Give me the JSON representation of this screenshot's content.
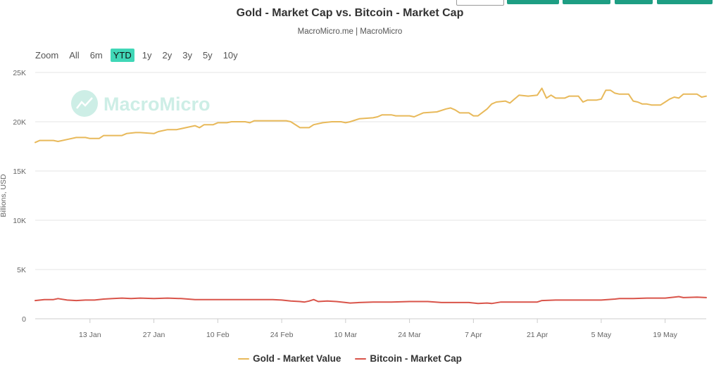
{
  "header": {
    "title": "Gold - Market Cap vs. Bitcoin - Market Cap",
    "subtitle": "MacroMicro.me | MacroMicro"
  },
  "range_selector": {
    "label": "Zoom",
    "buttons": [
      "All",
      "6m",
      "YTD",
      "1y",
      "2y",
      "3y",
      "5y",
      "10y"
    ],
    "active": "YTD",
    "active_color": "#40d7b7"
  },
  "watermark": {
    "text": "MacroMicro",
    "icon": "macromicro-chart-logo-icon"
  },
  "colors": {
    "accent": "#1e9e83",
    "gold": "#e8b95a",
    "bitcoin": "#d9544a",
    "grid": "#e6e6e6",
    "watermark": "#cdeee6"
  },
  "chart_data": {
    "type": "line",
    "title": "Gold - Market Cap vs. Bitcoin - Market Cap",
    "subtitle": "MacroMicro.me | MacroMicro",
    "xlabel": "",
    "ylabel": "Billions, USD",
    "ylim": [
      0,
      25000
    ],
    "yticks": [
      0,
      5000,
      10000,
      15000,
      20000,
      25000
    ],
    "ytick_labels": [
      "0",
      "5K",
      "10K",
      "15K",
      "20K",
      "25K"
    ],
    "xlim": [
      "2025-01-01",
      "2025-05-28"
    ],
    "xtick_dates": [
      "2025-01-13",
      "2025-01-27",
      "2025-02-10",
      "2025-02-24",
      "2025-03-10",
      "2025-03-24",
      "2025-04-07",
      "2025-04-21",
      "2025-05-05",
      "2025-05-19"
    ],
    "xtick_labels": [
      "13 Jan",
      "27 Jan",
      "10 Feb",
      "24 Feb",
      "10 Mar",
      "24 Mar",
      "7 Apr",
      "21 Apr",
      "5 May",
      "19 May"
    ],
    "grid": true,
    "legend_position": "bottom-center",
    "series": [
      {
        "name": "Gold - Market Value",
        "color": "#e8b95a",
        "points": [
          [
            "2025-01-01",
            17900
          ],
          [
            "2025-01-02",
            18100
          ],
          [
            "2025-01-03",
            18100
          ],
          [
            "2025-01-05",
            18100
          ],
          [
            "2025-01-06",
            18000
          ],
          [
            "2025-01-08",
            18200
          ],
          [
            "2025-01-10",
            18400
          ],
          [
            "2025-01-12",
            18400
          ],
          [
            "2025-01-13",
            18300
          ],
          [
            "2025-01-15",
            18300
          ],
          [
            "2025-01-16",
            18600
          ],
          [
            "2025-01-20",
            18600
          ],
          [
            "2025-01-21",
            18800
          ],
          [
            "2025-01-23",
            18900
          ],
          [
            "2025-01-24",
            18900
          ],
          [
            "2025-01-27",
            18800
          ],
          [
            "2025-01-28",
            19000
          ],
          [
            "2025-01-30",
            19200
          ],
          [
            "2025-02-01",
            19200
          ],
          [
            "2025-02-04",
            19500
          ],
          [
            "2025-02-05",
            19600
          ],
          [
            "2025-02-06",
            19400
          ],
          [
            "2025-02-07",
            19700
          ],
          [
            "2025-02-09",
            19700
          ],
          [
            "2025-02-10",
            19900
          ],
          [
            "2025-02-12",
            19900
          ],
          [
            "2025-02-13",
            20000
          ],
          [
            "2025-02-16",
            20000
          ],
          [
            "2025-02-17",
            19900
          ],
          [
            "2025-02-18",
            20100
          ],
          [
            "2025-02-21",
            20100
          ],
          [
            "2025-02-25",
            20100
          ],
          [
            "2025-02-26",
            20000
          ],
          [
            "2025-02-28",
            19400
          ],
          [
            "2025-03-02",
            19400
          ],
          [
            "2025-03-03",
            19700
          ],
          [
            "2025-03-05",
            19900
          ],
          [
            "2025-03-07",
            20000
          ],
          [
            "2025-03-09",
            20000
          ],
          [
            "2025-03-10",
            19900
          ],
          [
            "2025-03-11",
            20000
          ],
          [
            "2025-03-13",
            20300
          ],
          [
            "2025-03-16",
            20400
          ],
          [
            "2025-03-17",
            20500
          ],
          [
            "2025-03-18",
            20700
          ],
          [
            "2025-03-20",
            20700
          ],
          [
            "2025-03-21",
            20600
          ],
          [
            "2025-03-24",
            20600
          ],
          [
            "2025-03-25",
            20500
          ],
          [
            "2025-03-27",
            20900
          ],
          [
            "2025-03-30",
            21000
          ],
          [
            "2025-04-01",
            21300
          ],
          [
            "2025-04-02",
            21400
          ],
          [
            "2025-04-03",
            21200
          ],
          [
            "2025-04-04",
            20900
          ],
          [
            "2025-04-06",
            20900
          ],
          [
            "2025-04-07",
            20600
          ],
          [
            "2025-04-08",
            20600
          ],
          [
            "2025-04-10",
            21300
          ],
          [
            "2025-04-11",
            21800
          ],
          [
            "2025-04-12",
            22000
          ],
          [
            "2025-04-14",
            22100
          ],
          [
            "2025-04-15",
            21900
          ],
          [
            "2025-04-16",
            22300
          ],
          [
            "2025-04-17",
            22700
          ],
          [
            "2025-04-19",
            22600
          ],
          [
            "2025-04-21",
            22700
          ],
          [
            "2025-04-22",
            23400
          ],
          [
            "2025-04-23",
            22400
          ],
          [
            "2025-04-24",
            22700
          ],
          [
            "2025-04-25",
            22400
          ],
          [
            "2025-04-27",
            22400
          ],
          [
            "2025-04-28",
            22600
          ],
          [
            "2025-04-30",
            22600
          ],
          [
            "2025-05-01",
            22000
          ],
          [
            "2025-05-02",
            22200
          ],
          [
            "2025-05-04",
            22200
          ],
          [
            "2025-05-05",
            22300
          ],
          [
            "2025-05-06",
            23200
          ],
          [
            "2025-05-07",
            23200
          ],
          [
            "2025-05-08",
            22900
          ],
          [
            "2025-05-09",
            22800
          ],
          [
            "2025-05-11",
            22800
          ],
          [
            "2025-05-12",
            22100
          ],
          [
            "2025-05-13",
            22000
          ],
          [
            "2025-05-14",
            21800
          ],
          [
            "2025-05-15",
            21800
          ],
          [
            "2025-05-16",
            21700
          ],
          [
            "2025-05-18",
            21700
          ],
          [
            "2025-05-19",
            22000
          ],
          [
            "2025-05-20",
            22300
          ],
          [
            "2025-05-21",
            22500
          ],
          [
            "2025-05-22",
            22400
          ],
          [
            "2025-05-23",
            22800
          ],
          [
            "2025-05-25",
            22800
          ],
          [
            "2025-05-26",
            22800
          ],
          [
            "2025-05-27",
            22500
          ],
          [
            "2025-05-28",
            22600
          ]
        ]
      },
      {
        "name": "Bitcoin - Market Cap",
        "color": "#d9544a",
        "points": [
          [
            "2025-01-01",
            1850
          ],
          [
            "2025-01-03",
            1950
          ],
          [
            "2025-01-05",
            1950
          ],
          [
            "2025-01-06",
            2050
          ],
          [
            "2025-01-08",
            1900
          ],
          [
            "2025-01-10",
            1850
          ],
          [
            "2025-01-12",
            1900
          ],
          [
            "2025-01-14",
            1900
          ],
          [
            "2025-01-16",
            2000
          ],
          [
            "2025-01-18",
            2050
          ],
          [
            "2025-01-20",
            2100
          ],
          [
            "2025-01-22",
            2050
          ],
          [
            "2025-01-24",
            2100
          ],
          [
            "2025-01-27",
            2050
          ],
          [
            "2025-01-30",
            2100
          ],
          [
            "2025-02-02",
            2050
          ],
          [
            "2025-02-05",
            1950
          ],
          [
            "2025-02-08",
            1950
          ],
          [
            "2025-02-10",
            1950
          ],
          [
            "2025-02-13",
            1950
          ],
          [
            "2025-02-16",
            1950
          ],
          [
            "2025-02-19",
            1950
          ],
          [
            "2025-02-22",
            1950
          ],
          [
            "2025-02-24",
            1900
          ],
          [
            "2025-02-26",
            1800
          ],
          [
            "2025-02-28",
            1750
          ],
          [
            "2025-03-01",
            1700
          ],
          [
            "2025-03-02",
            1800
          ],
          [
            "2025-03-03",
            1950
          ],
          [
            "2025-03-04",
            1750
          ],
          [
            "2025-03-06",
            1800
          ],
          [
            "2025-03-08",
            1750
          ],
          [
            "2025-03-10",
            1650
          ],
          [
            "2025-03-11",
            1600
          ],
          [
            "2025-03-13",
            1650
          ],
          [
            "2025-03-16",
            1700
          ],
          [
            "2025-03-20",
            1700
          ],
          [
            "2025-03-24",
            1750
          ],
          [
            "2025-03-28",
            1750
          ],
          [
            "2025-03-31",
            1650
          ],
          [
            "2025-04-03",
            1650
          ],
          [
            "2025-04-06",
            1650
          ],
          [
            "2025-04-08",
            1550
          ],
          [
            "2025-04-10",
            1600
          ],
          [
            "2025-04-11",
            1550
          ],
          [
            "2025-04-13",
            1700
          ],
          [
            "2025-04-17",
            1700
          ],
          [
            "2025-04-21",
            1700
          ],
          [
            "2025-04-22",
            1850
          ],
          [
            "2025-04-25",
            1900
          ],
          [
            "2025-04-30",
            1900
          ],
          [
            "2025-05-05",
            1900
          ],
          [
            "2025-05-08",
            2000
          ],
          [
            "2025-05-09",
            2050
          ],
          [
            "2025-05-12",
            2050
          ],
          [
            "2025-05-15",
            2100
          ],
          [
            "2025-05-19",
            2100
          ],
          [
            "2025-05-21",
            2200
          ],
          [
            "2025-05-22",
            2250
          ],
          [
            "2025-05-23",
            2150
          ],
          [
            "2025-05-26",
            2200
          ],
          [
            "2025-05-28",
            2150
          ]
        ]
      }
    ]
  }
}
